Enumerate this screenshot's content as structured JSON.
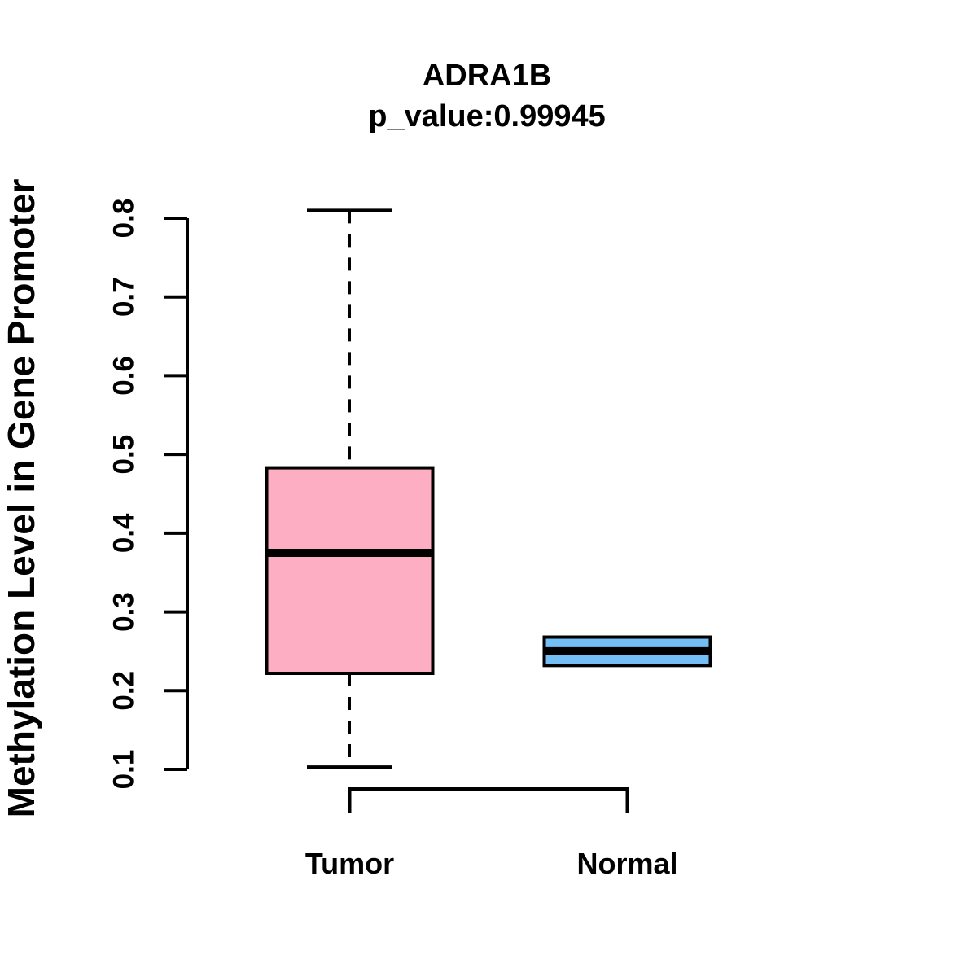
{
  "chart_data": {
    "type": "boxplot",
    "title": "ADRA1B",
    "subtitle": "p_value:0.99945",
    "p_value": "0.99945",
    "ylabel": "Methylation Level in Gene Promoter",
    "xlabel": "",
    "categories": [
      "Tumor",
      "Normal"
    ],
    "series": [
      {
        "name": "Tumor",
        "whisker_low": 0.103,
        "q1": 0.222,
        "median": 0.375,
        "q3": 0.483,
        "whisker_high": 0.81,
        "fill_color": "#FDAEC2"
      },
      {
        "name": "Normal",
        "whisker_low": 0.232,
        "q1": 0.232,
        "median": 0.25,
        "q3": 0.268,
        "whisker_high": 0.268,
        "fill_color": "#73BEF5"
      }
    ],
    "yticks": [
      0.1,
      0.2,
      0.3,
      0.4,
      0.5,
      0.6,
      0.7,
      0.8
    ],
    "ytick_labels": [
      "0.1",
      "0.2",
      "0.3",
      "0.4",
      "0.5",
      "0.6",
      "0.7",
      "0.8"
    ],
    "ylim": [
      0.1,
      0.81
    ],
    "grid": false,
    "legend": false,
    "stroke_color": "#000000",
    "background_color": "#FFFFFF"
  }
}
